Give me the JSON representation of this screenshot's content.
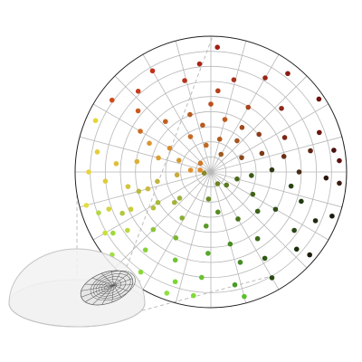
{
  "colors": {
    "grid": "#b8b8b8",
    "outline": "#222222",
    "dashed": "#bdbdbd",
    "dome_fill": "#f2f2f2",
    "dome_stroke": "#c4c4c4",
    "inset_grid": "#555555"
  },
  "chart_data": {
    "type": "scatter",
    "projection": "polar",
    "rings": 9,
    "spokes": 24,
    "points": [
      {
        "r": 0.92,
        "t": 87,
        "c": "#a31d14"
      },
      {
        "r": 0.8,
        "t": 96,
        "c": "#aa2416"
      },
      {
        "r": 0.92,
        "t": 52,
        "c": "#8a1a12"
      },
      {
        "r": 0.8,
        "t": 60,
        "c": "#9a2415"
      },
      {
        "r": 0.96,
        "t": 34,
        "c": "#6e140f"
      },
      {
        "r": 0.7,
        "t": 76,
        "c": "#a8301a"
      },
      {
        "r": 0.6,
        "t": 85,
        "c": "#b4401c"
      },
      {
        "r": 0.7,
        "t": 106,
        "c": "#b5331a"
      },
      {
        "r": 0.86,
        "t": 120,
        "c": "#c0301a"
      },
      {
        "r": 0.8,
        "t": 132,
        "c": "#c83c1e"
      },
      {
        "r": 0.9,
        "t": 144,
        "c": "#cf4a1e"
      },
      {
        "r": 0.93,
        "t": 156,
        "c": "#e6d634"
      },
      {
        "r": 0.7,
        "t": 140,
        "c": "#cc5a20"
      },
      {
        "r": 0.6,
        "t": 150,
        "c": "#d06a22"
      },
      {
        "r": 0.5,
        "t": 132,
        "c": "#c45e20"
      },
      {
        "r": 0.45,
        "t": 110,
        "c": "#b55a1e"
      },
      {
        "r": 0.5,
        "t": 90,
        "c": "#bd4e1c"
      },
      {
        "r": 0.4,
        "t": 75,
        "c": "#c05a1c"
      },
      {
        "r": 0.3,
        "t": 120,
        "c": "#c86a22"
      },
      {
        "r": 0.35,
        "t": 100,
        "c": "#b85a20"
      },
      {
        "r": 0.55,
        "t": 60,
        "c": "#a8441a"
      },
      {
        "r": 0.85,
        "t": 20,
        "c": "#6a140f"
      },
      {
        "r": 0.7,
        "t": 42,
        "c": "#8b2a18"
      },
      {
        "r": 0.6,
        "t": 25,
        "c": "#7a2814"
      },
      {
        "r": 0.45,
        "t": 38,
        "c": "#8e3a1a"
      },
      {
        "r": 0.4,
        "t": 55,
        "c": "#a04a1c"
      },
      {
        "r": 0.3,
        "t": 50,
        "c": "#a4541e"
      },
      {
        "r": 0.25,
        "t": 75,
        "c": "#b45a20"
      },
      {
        "r": 0.2,
        "t": 100,
        "c": "#c06a24"
      },
      {
        "r": 0.15,
        "t": 60,
        "c": "#9e5a20"
      },
      {
        "r": 0.1,
        "t": 140,
        "c": "#d07826"
      },
      {
        "r": 0.08,
        "t": 170,
        "c": "#e08a2a"
      },
      {
        "r": 0.95,
        "t": 5,
        "c": "#5a120e"
      },
      {
        "r": 0.92,
        "t": 10,
        "c": "#4a100c"
      },
      {
        "r": 0.85,
        "t": -3,
        "c": "#2a160e"
      },
      {
        "r": 0.95,
        "t": -5,
        "c": "#3a1a10"
      },
      {
        "r": 0.75,
        "t": 12,
        "c": "#5e2412"
      },
      {
        "r": 0.55,
        "t": 12,
        "c": "#6a3014"
      },
      {
        "r": 0.4,
        "t": 20,
        "c": "#7a3a18"
      },
      {
        "r": 0.25,
        "t": 25,
        "c": "#8a4a1a"
      },
      {
        "r": 0.65,
        "t": 0,
        "c": "#4a2a12"
      },
      {
        "r": 0.45,
        "t": 2,
        "c": "#2e3a14"
      },
      {
        "r": 0.3,
        "t": -5,
        "c": "#3a5a1a"
      },
      {
        "r": 0.2,
        "t": -15,
        "c": "#4a6a1a"
      },
      {
        "r": 0.15,
        "t": -40,
        "c": "#5a7a1e"
      },
      {
        "r": 0.1,
        "t": -60,
        "c": "#6a8420"
      },
      {
        "r": 0.05,
        "t": 190,
        "c": "#8a8a2a"
      },
      {
        "r": 0.95,
        "t": -20,
        "c": "#1a1a0e"
      },
      {
        "r": 0.85,
        "t": -25,
        "c": "#1e2a10"
      },
      {
        "r": 0.7,
        "t": -18,
        "c": "#223a12"
      },
      {
        "r": 0.6,
        "t": -10,
        "c": "#284214"
      },
      {
        "r": 0.95,
        "t": -40,
        "c": "#1e1a0c"
      },
      {
        "r": 0.85,
        "t": -42,
        "c": "#1a2e0e"
      },
      {
        "r": 0.75,
        "t": -35,
        "c": "#2a4614"
      },
      {
        "r": 0.55,
        "t": -30,
        "c": "#2e5016"
      },
      {
        "r": 0.45,
        "t": -40,
        "c": "#3c6018"
      },
      {
        "r": 0.35,
        "t": -28,
        "c": "#426418"
      },
      {
        "r": 0.4,
        "t": -60,
        "c": "#4a741c"
      },
      {
        "r": 0.6,
        "t": -55,
        "c": "#3a6a1a"
      },
      {
        "r": 0.75,
        "t": -58,
        "c": "#2e5a16"
      },
      {
        "r": 0.9,
        "t": -60,
        "c": "#2a4a14"
      },
      {
        "r": 0.95,
        "t": -75,
        "c": "#5ac02a"
      },
      {
        "r": 0.85,
        "t": -78,
        "c": "#4a9a24"
      },
      {
        "r": 0.7,
        "t": -72,
        "c": "#448c22"
      },
      {
        "r": 0.55,
        "t": -75,
        "c": "#4a8a22"
      },
      {
        "r": 0.3,
        "t": -80,
        "c": "#5a8a22"
      },
      {
        "r": 0.2,
        "t": -95,
        "c": "#6a8a24"
      },
      {
        "r": 0.4,
        "t": -95,
        "c": "#5a9a26"
      },
      {
        "r": 0.6,
        "t": -92,
        "c": "#56aa28"
      },
      {
        "r": 0.78,
        "t": -95,
        "c": "#68c030"
      },
      {
        "r": 0.92,
        "t": -98,
        "c": "#80d836"
      },
      {
        "r": 0.95,
        "t": -110,
        "c": "#8ee03c"
      },
      {
        "r": 0.85,
        "t": -108,
        "c": "#7ad634"
      },
      {
        "r": 0.7,
        "t": -112,
        "c": "#72c432"
      },
      {
        "r": 0.55,
        "t": -118,
        "c": "#7ab634"
      },
      {
        "r": 0.4,
        "t": -122,
        "c": "#8aae36"
      },
      {
        "r": 0.3,
        "t": -140,
        "c": "#9ab238"
      },
      {
        "r": 0.45,
        "t": -150,
        "c": "#a8ba3a"
      },
      {
        "r": 0.6,
        "t": -135,
        "c": "#8ec43a"
      },
      {
        "r": 0.75,
        "t": -130,
        "c": "#88d03a"
      },
      {
        "r": 0.9,
        "t": -125,
        "c": "#8ad83c"
      },
      {
        "r": 0.95,
        "t": -140,
        "c": "#9ee040"
      },
      {
        "r": 0.85,
        "t": -148,
        "c": "#a0d83e"
      },
      {
        "r": 0.72,
        "t": -155,
        "c": "#b0c83e"
      },
      {
        "r": 0.88,
        "t": -160,
        "c": "#b4d840"
      },
      {
        "r": 0.55,
        "t": -165,
        "c": "#b8ba3e"
      },
      {
        "r": 0.4,
        "t": -170,
        "c": "#c0b43e"
      },
      {
        "r": 0.25,
        "t": -175,
        "c": "#c8ac3a"
      },
      {
        "r": 0.25,
        "t": 160,
        "c": "#d09a30"
      },
      {
        "r": 0.4,
        "t": 165,
        "c": "#d8a034"
      },
      {
        "r": 0.55,
        "t": 172,
        "c": "#dab036"
      },
      {
        "r": 0.7,
        "t": 175,
        "c": "#ddc03a"
      },
      {
        "r": 0.85,
        "t": 170,
        "c": "#e4cc3a"
      },
      {
        "r": 0.9,
        "t": 180,
        "c": "#e8d43c"
      },
      {
        "r": 0.78,
        "t": 185,
        "c": "#dccc3c"
      },
      {
        "r": 0.62,
        "t": 190,
        "c": "#d4c43c"
      },
      {
        "r": 0.48,
        "t": 195,
        "c": "#ccba3c"
      },
      {
        "r": 0.35,
        "t": 150,
        "c": "#d88a2e"
      },
      {
        "r": 0.5,
        "t": 155,
        "c": "#dc9430"
      },
      {
        "r": 0.95,
        "t": 195,
        "c": "#e4de40"
      },
      {
        "r": 0.8,
        "t": 200,
        "c": "#d6d43e"
      },
      {
        "r": 0.65,
        "t": 205,
        "c": "#cccc3c"
      },
      {
        "r": 0.5,
        "t": 212,
        "c": "#b8be3a"
      },
      {
        "r": 0.35,
        "t": 220,
        "c": "#a4b038"
      },
      {
        "r": 0.9,
        "t": 210,
        "c": "#c8e040"
      },
      {
        "r": 0.75,
        "t": 215,
        "c": "#bed63e"
      },
      {
        "r": 0.15,
        "t": 175,
        "c": "#e0902c"
      }
    ]
  }
}
